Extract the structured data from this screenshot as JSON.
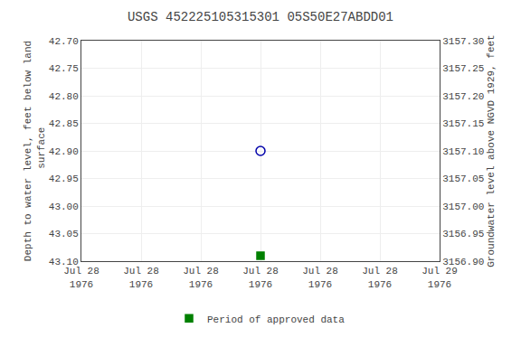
{
  "chart_data": {
    "type": "scatter",
    "title": "USGS 452225105315301 05S50E27ABDD01",
    "y_label": "Depth to water level, feet below land\n surface",
    "y2_label": "Groundwater level above NGVD 1929, feet",
    "categories": [
      "Jul 28\n1976",
      "Jul 28\n1976",
      "Jul 28\n1976",
      "Jul 28\n1976",
      "Jul 28\n1976",
      "Jul 28\n1976",
      "Jul 29\n1976"
    ],
    "series": [
      {
        "color": "#0000aa",
        "marker": "circle-open",
        "values": [
          null,
          null,
          null,
          42.9,
          null,
          null,
          null
        ]
      },
      {
        "name": "Period of approved data",
        "color": "#008000",
        "marker": "square",
        "values": [
          null,
          null,
          null,
          43.09,
          null,
          null,
          null
        ]
      }
    ],
    "ylim": [
      43.1,
      42.7
    ],
    "yticks": [
      {
        "value": 42.7,
        "label": "42.70"
      },
      42.75,
      {
        "value": 42.8,
        "label": "42.80"
      },
      42.85,
      {
        "value": 42.9,
        "label": "42.90"
      },
      42.95,
      {
        "value": 43.0,
        "label": "43.00"
      },
      43.05,
      {
        "value": 43.1,
        "label": "43.10"
      }
    ],
    "y2lim": [
      3156.9,
      3157.3
    ],
    "y2ticks": [
      {
        "value": 3156.9,
        "label": "3156.90"
      },
      3156.95,
      {
        "value": 3157.0,
        "label": "3157.00"
      },
      3157.05,
      {
        "value": 3157.1,
        "label": "3157.10"
      },
      3157.15,
      {
        "value": 3157.2,
        "label": "3157.20"
      },
      3157.25,
      {
        "value": 3157.3,
        "label": "3157.30"
      }
    ],
    "grid": true,
    "legend": "bottom"
  }
}
